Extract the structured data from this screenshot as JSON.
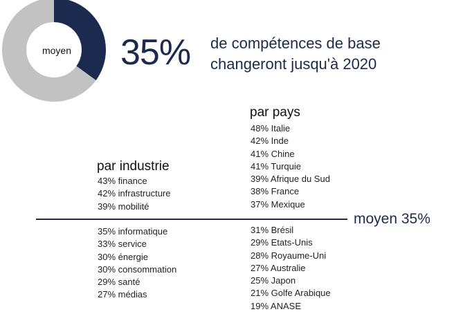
{
  "chart_data": {
    "type": "pie",
    "donut": {
      "values": [
        35,
        65
      ],
      "colors": [
        "#1b2a4e",
        "#c2c2c2"
      ],
      "center_label": "moyen"
    },
    "headline_value": "35%",
    "headline_text": [
      "de compétences de base",
      "changeront jusqu'à 2020"
    ],
    "industry": {
      "title": "par industrie",
      "above": [
        "43% finance",
        "42% infrastructure",
        "39% mobilité"
      ],
      "below": [
        "35% informatique",
        "33% service",
        "30% énergie",
        "30% consommation",
        "29% santé",
        "27% médias"
      ]
    },
    "country": {
      "title": "par pays",
      "above": [
        "48% Italie",
        "42% Inde",
        "41% Chine",
        "41% Turquie",
        "39% Afrique du Sud",
        "38% France",
        "37% Mexique"
      ],
      "below": [
        "31% Brésil",
        "29% Etats-Unis",
        "28% Royaume-Uni",
        "27% Australie",
        "25% Japon",
        "21% Golfe Arabique",
        "19% ANASE"
      ]
    },
    "average_label": "moyen 35%"
  }
}
